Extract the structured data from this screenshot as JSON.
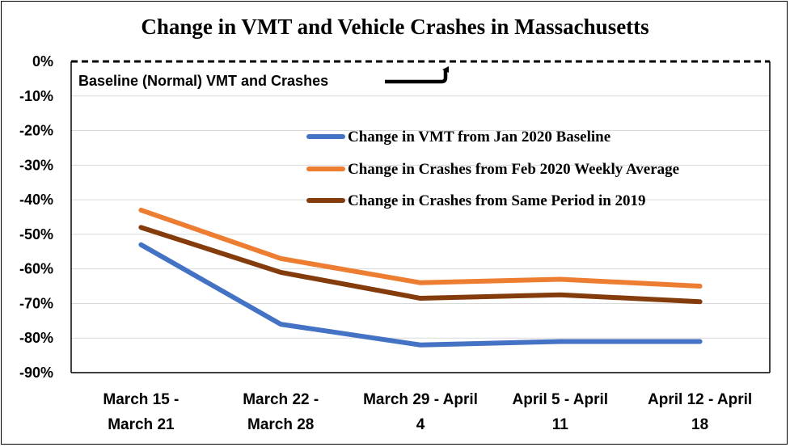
{
  "chart_data": {
    "type": "line",
    "title": "Change in VMT and Vehicle Crashes in Massachusetts",
    "xlabel": "",
    "ylabel": "",
    "categories": [
      [
        "March 15 -",
        "March 21"
      ],
      [
        "March 22 -",
        "March 28"
      ],
      [
        "March 29 - April",
        "4"
      ],
      [
        "April 5 -  April",
        "11"
      ],
      [
        "April 12 - April",
        "18"
      ]
    ],
    "ylim": [
      -90,
      0
    ],
    "yticks": [
      0,
      -10,
      -20,
      -30,
      -40,
      -50,
      -60,
      -70,
      -80,
      -90
    ],
    "ytick_labels": [
      "0%",
      "-10%",
      "-20%",
      "-30%",
      "-40%",
      "-50%",
      "-60%",
      "-70%",
      "-80%",
      "-90%"
    ],
    "grid": true,
    "legend_position": "right",
    "series": [
      {
        "name": "Change in VMT from Jan 2020 Baseline",
        "color": "#4472C4",
        "values": [
          -53,
          -76,
          -82,
          -81,
          -81
        ]
      },
      {
        "name": "Change in Crashes from Feb 2020 Weekly Average",
        "color": "#ED7D31",
        "values": [
          -43,
          -57,
          -64,
          -63,
          -65
        ]
      },
      {
        "name": "Change in Crashes from Same Period in 2019",
        "color": "#843C0C",
        "values": [
          -48,
          -61,
          -68.5,
          -67.5,
          -69.5
        ]
      }
    ],
    "annotation": "Baseline (Normal) VMT and Crashes"
  }
}
